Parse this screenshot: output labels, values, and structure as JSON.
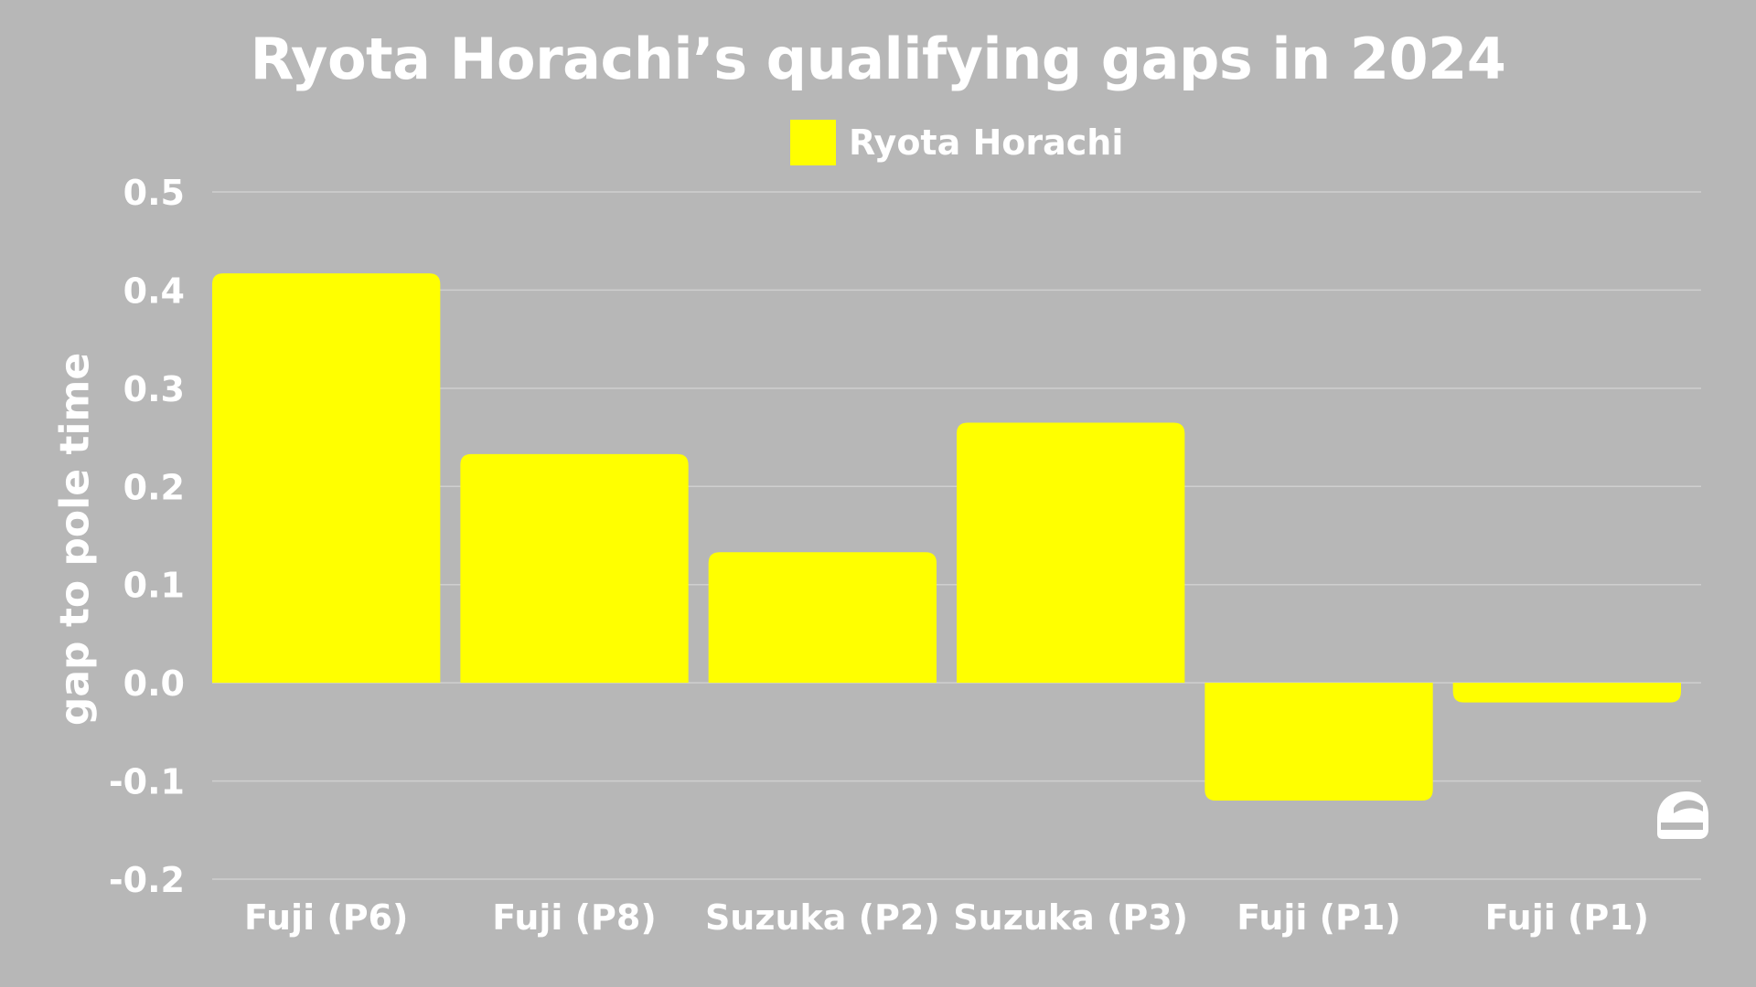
{
  "chart_data": {
    "type": "bar",
    "title": "Ryota Horachi’s qualifying gaps in 2024",
    "ylabel": "gap to pole time",
    "xlabel": "",
    "categories": [
      "Fuji (P6)",
      "Fuji (P8)",
      "Suzuka (P2)",
      "Suzuka (P3)",
      "Fuji (P1)",
      "Fuji (P1)"
    ],
    "series": [
      {
        "name": "Ryota Horachi",
        "values": [
          0.417,
          0.233,
          0.133,
          0.265,
          -0.12,
          -0.02
        ],
        "color": "#ffff00"
      }
    ],
    "ylim": [
      -0.2,
      0.5
    ],
    "yticks": [
      "0.5",
      "0.4",
      "0.3",
      "0.2",
      "0.1",
      "0.0",
      "-0.1",
      "-0.2"
    ],
    "grid": true,
    "legend_position": "top-center"
  },
  "colors": {
    "background": "#b7b7b7",
    "gridline": "#cfcfcf",
    "text": "#ffffff"
  },
  "logo": {
    "icon": "helmet-icon"
  }
}
